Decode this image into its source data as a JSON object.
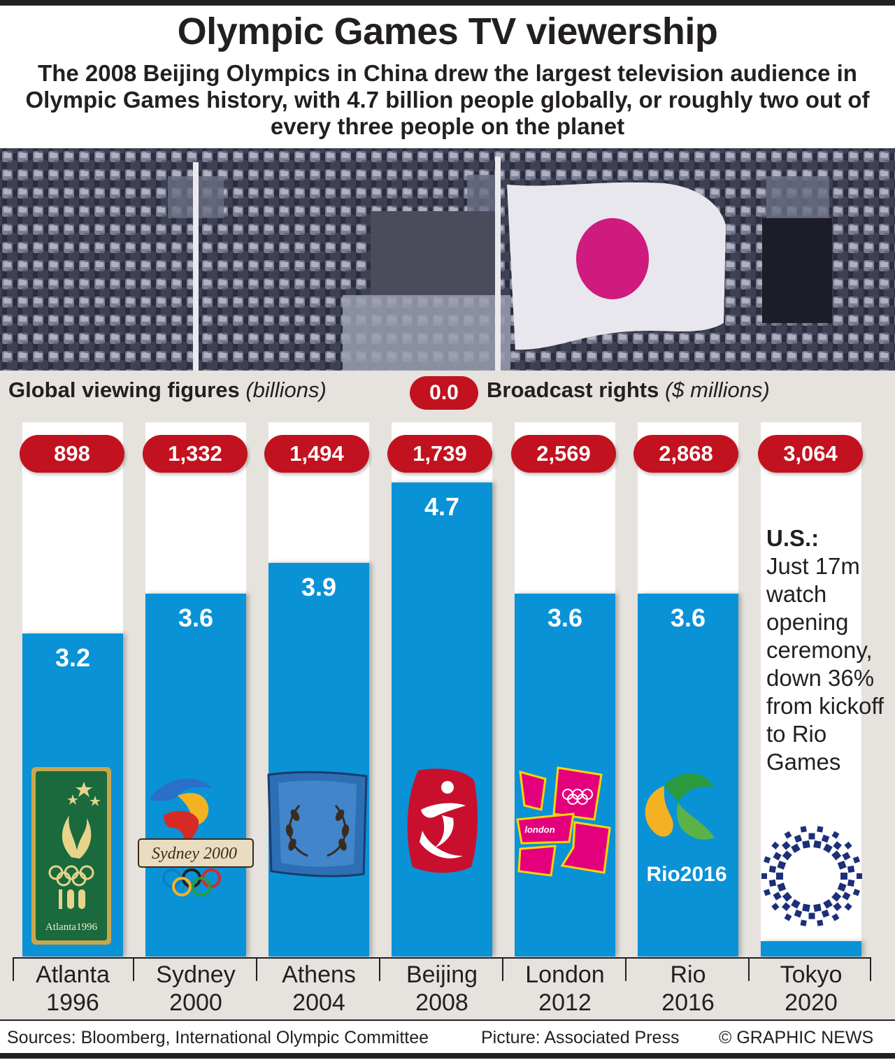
{
  "header": {
    "title": "Olympic Games TV viewership",
    "subtitle": "The 2008 Beijing Olympics in China drew the largest television audience in Olympic Games history, with 4.7 billion people globally, or roughly two out of every three people on the planet"
  },
  "legend": {
    "viewing_label": "Global viewing figures",
    "viewing_unit": "(billions)",
    "rights_sample": "0.0",
    "rights_label": "Broadcast rights",
    "rights_unit": "($ millions)"
  },
  "note": {
    "heading": "U.S.:",
    "text": "Just 17m watch opening ceremony, down 36% from kickoff to Rio Games"
  },
  "footer": {
    "sources": "Sources: Bloomberg, International Olympic Committee",
    "picture": "Picture: Associated Press",
    "copyright": "© GRAPHIC NEWS"
  },
  "logos": {
    "atlanta": "Atlanta1996",
    "sydney": "Sydney 2000",
    "london": "london",
    "rio": "Rio2016"
  },
  "colors": {
    "bar": "#0a92d6",
    "rights_pill": "#c2121f",
    "panel": "#e6e3de",
    "text": "#231f20"
  },
  "chart_data": {
    "type": "bar",
    "title": "Olympic Games TV viewership",
    "categories": [
      "Atlanta 1996",
      "Sydney 2000",
      "Athens 2004",
      "Beijing 2008",
      "London 2012",
      "Rio 2016",
      "Tokyo 2020"
    ],
    "category_lines": [
      [
        "Atlanta",
        "1996"
      ],
      [
        "Sydney",
        "2000"
      ],
      [
        "Athens",
        "2004"
      ],
      [
        "Beijing",
        "2008"
      ],
      [
        "London",
        "2012"
      ],
      [
        "Rio",
        "2016"
      ],
      [
        "Tokyo",
        "2020"
      ]
    ],
    "series": [
      {
        "name": "Global viewing figures (billions)",
        "values": [
          3.2,
          3.6,
          3.9,
          4.7,
          3.6,
          3.6,
          null
        ],
        "value_labels": [
          "3.2",
          "3.6",
          "3.9",
          "4.7",
          "3.6",
          "3.6",
          ""
        ]
      },
      {
        "name": "Broadcast rights ($ millions)",
        "values": [
          898,
          1332,
          1494,
          1739,
          2569,
          2868,
          3064
        ],
        "value_labels": [
          "898",
          "1,332",
          "1,494",
          "1,739",
          "2,569",
          "2,868",
          "3,064"
        ]
      }
    ],
    "ylim": [
      0,
      4.7
    ],
    "grid": false,
    "legend": "top"
  }
}
